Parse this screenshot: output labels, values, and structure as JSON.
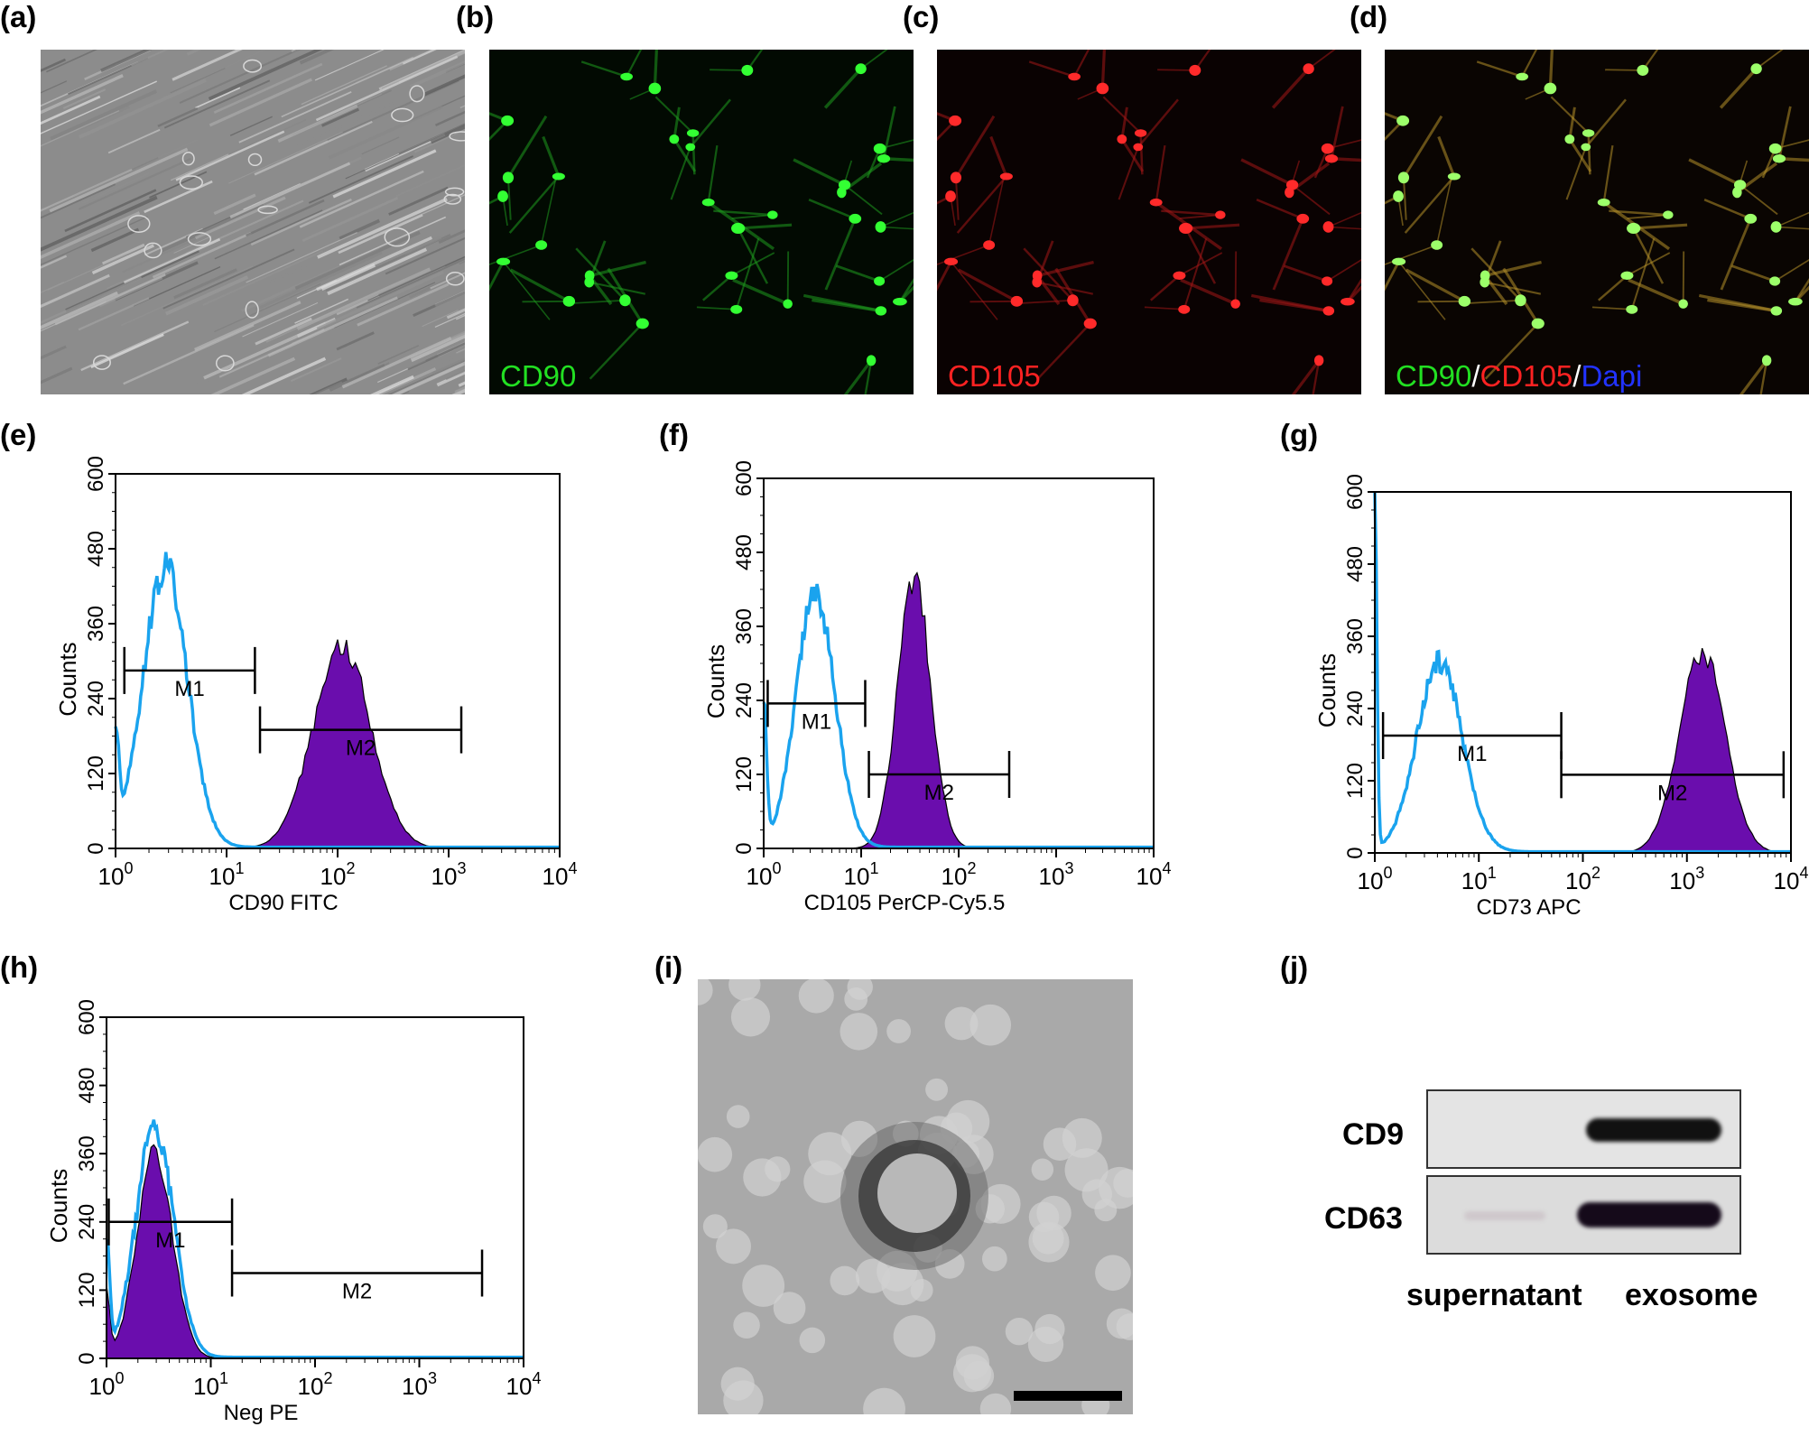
{
  "figure": {
    "panel_labels": [
      "(a)",
      "(b)",
      "(c)",
      "(d)",
      "(e)",
      "(f)",
      "(g)",
      "(h)",
      "(i)",
      "(j)"
    ],
    "panel_b": {
      "stain": "CD90",
      "stain_color": "#22e022"
    },
    "panel_c": {
      "stain": "CD105",
      "stain_color": "#ff2222"
    },
    "panel_d": {
      "stain_parts": [
        "CD90",
        "/",
        "CD105",
        "/",
        "Dapi"
      ],
      "stain_colors": [
        "#22e022",
        "#ffffff",
        "#ff2222",
        "#ffffff",
        "#2233ff"
      ]
    },
    "panel_j": {
      "rows": [
        "CD9",
        "CD63"
      ],
      "lanes": [
        "supernatant",
        "exosome"
      ]
    }
  },
  "colors": {
    "isotype_line": "#1aa3ee",
    "stained_fill": "#6a0dad",
    "axis": "#000000"
  },
  "chart_data": [
    {
      "type": "area",
      "panel": "(e)",
      "xscale": "log",
      "xlim": [
        1,
        10000
      ],
      "ylim": [
        0,
        600
      ],
      "xlabel": "CD90 FITC",
      "ylabel": "Counts",
      "yticks": [
        "0",
        "120",
        "240",
        "360",
        "480",
        "600"
      ],
      "xticks": [
        1,
        10,
        100,
        1000,
        10000
      ],
      "series": [
        {
          "peaks": [
            {
              "center": 2.8,
              "height": 450,
              "sigma": 0.2
            },
            {
              "center": 1.0,
              "height": 160,
              "sigma": 0.03
            }
          ]
        },
        {
          "peaks": [
            {
              "center": 110,
              "height": 325,
              "sigma": 0.26
            }
          ]
        }
      ],
      "markers": [
        {
          "label": "M1",
          "x1": 1.2,
          "x2": 18,
          "y": 285
        },
        {
          "label": "M2",
          "x1": 20,
          "x2": 1300,
          "y": 190
        }
      ]
    },
    {
      "type": "area",
      "panel": "(f)",
      "xscale": "log",
      "xlim": [
        1,
        10000
      ],
      "ylim": [
        0,
        600
      ],
      "xlabel": "CD105 PerCP-Cy5.5",
      "ylabel": "Counts",
      "yticks": [
        "0",
        "120",
        "240",
        "360",
        "480",
        "600"
      ],
      "xticks": [
        1,
        10,
        100,
        1000,
        10000
      ],
      "series": [
        {
          "peaks": [
            {
              "center": 3.4,
              "height": 410,
              "sigma": 0.2
            },
            {
              "center": 1.0,
              "height": 230,
              "sigma": 0.03
            }
          ]
        },
        {
          "peaks": [
            {
              "center": 35,
              "height": 440,
              "sigma": 0.17
            }
          ]
        }
      ],
      "markers": [
        {
          "label": "M1",
          "x1": 1.1,
          "x2": 11,
          "y": 235
        },
        {
          "label": "M2",
          "x1": 12,
          "x2": 330,
          "y": 120
        }
      ]
    },
    {
      "type": "area",
      "panel": "(g)",
      "xscale": "log",
      "xlim": [
        1,
        10000
      ],
      "ylim": [
        0,
        600
      ],
      "xlabel": "CD73 APC",
      "ylabel": "Counts",
      "yticks": [
        "0",
        "120",
        "240",
        "360",
        "480",
        "600"
      ],
      "xticks": [
        1,
        10,
        100,
        1000,
        10000
      ],
      "series": [
        {
          "peaks": [
            {
              "center": 4.2,
              "height": 315,
              "sigma": 0.22
            },
            {
              "center": 1.0,
              "height": 600,
              "sigma": 0.02
            }
          ]
        },
        {
          "peaks": [
            {
              "center": 1400,
              "height": 335,
              "sigma": 0.22
            }
          ]
        }
      ],
      "markers": [
        {
          "label": "M1",
          "x1": 1.2,
          "x2": 62,
          "y": 195
        },
        {
          "label": "M2",
          "x1": 62,
          "x2": 8500,
          "y": 130
        }
      ]
    },
    {
      "type": "area",
      "panel": "(h)",
      "xscale": "log",
      "xlim": [
        1,
        10000
      ],
      "ylim": [
        0,
        600
      ],
      "xlabel": "Neg PE",
      "ylabel": "Counts",
      "yticks": [
        "0",
        "120",
        "240",
        "360",
        "480",
        "600"
      ],
      "xticks": [
        1,
        10,
        100,
        1000,
        10000
      ],
      "series": [
        {
          "peaks": [
            {
              "center": 2.9,
              "height": 405,
              "sigma": 0.18
            },
            {
              "center": 1.0,
              "height": 200,
              "sigma": 0.03
            }
          ]
        },
        {
          "peaks": [
            {
              "center": 2.9,
              "height": 360,
              "sigma": 0.17
            },
            {
              "center": 1.0,
              "height": 120,
              "sigma": 0.03
            }
          ]
        }
      ],
      "markers": [
        {
          "label": "M1",
          "x1": 1.05,
          "x2": 16,
          "y": 240
        },
        {
          "label": "M2",
          "x1": 16,
          "x2": 4000,
          "y": 150
        }
      ]
    }
  ]
}
